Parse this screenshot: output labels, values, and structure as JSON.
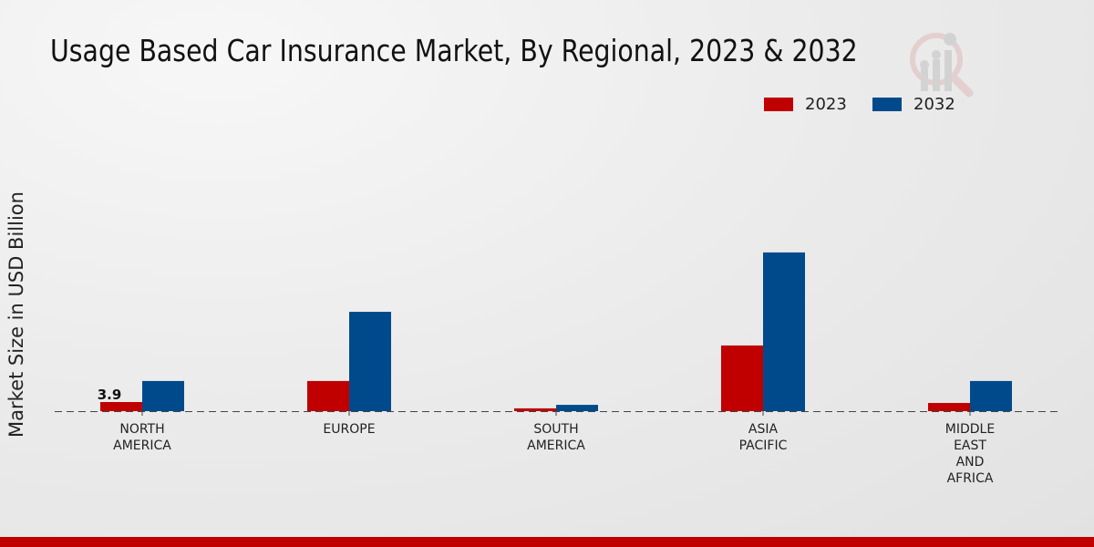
{
  "chart_data": {
    "type": "bar",
    "title": "Usage Based Car Insurance Market, By Regional, 2023 & 2032",
    "ylabel": "Market Size in USD Billion",
    "xlabel": "",
    "categories": [
      [
        "NORTH",
        "AMERICA"
      ],
      [
        "EUROPE"
      ],
      [
        "SOUTH",
        "AMERICA"
      ],
      [
        "ASIA",
        "PACIFIC"
      ],
      [
        "MIDDLE",
        "EAST",
        "AND",
        "AFRICA"
      ]
    ],
    "series": [
      {
        "name": "2023",
        "color": "#c00000",
        "values": [
          3.9,
          12.9,
          1.2,
          28.1,
          3.5
        ]
      },
      {
        "name": "2032",
        "color": "#004a8c",
        "values": [
          12.9,
          42.5,
          2.7,
          67.9,
          12.9
        ]
      }
    ],
    "data_labels": [
      {
        "series": 0,
        "index": 0,
        "text": "3.9"
      }
    ],
    "legend_position": "top-right",
    "grid": false
  }
}
